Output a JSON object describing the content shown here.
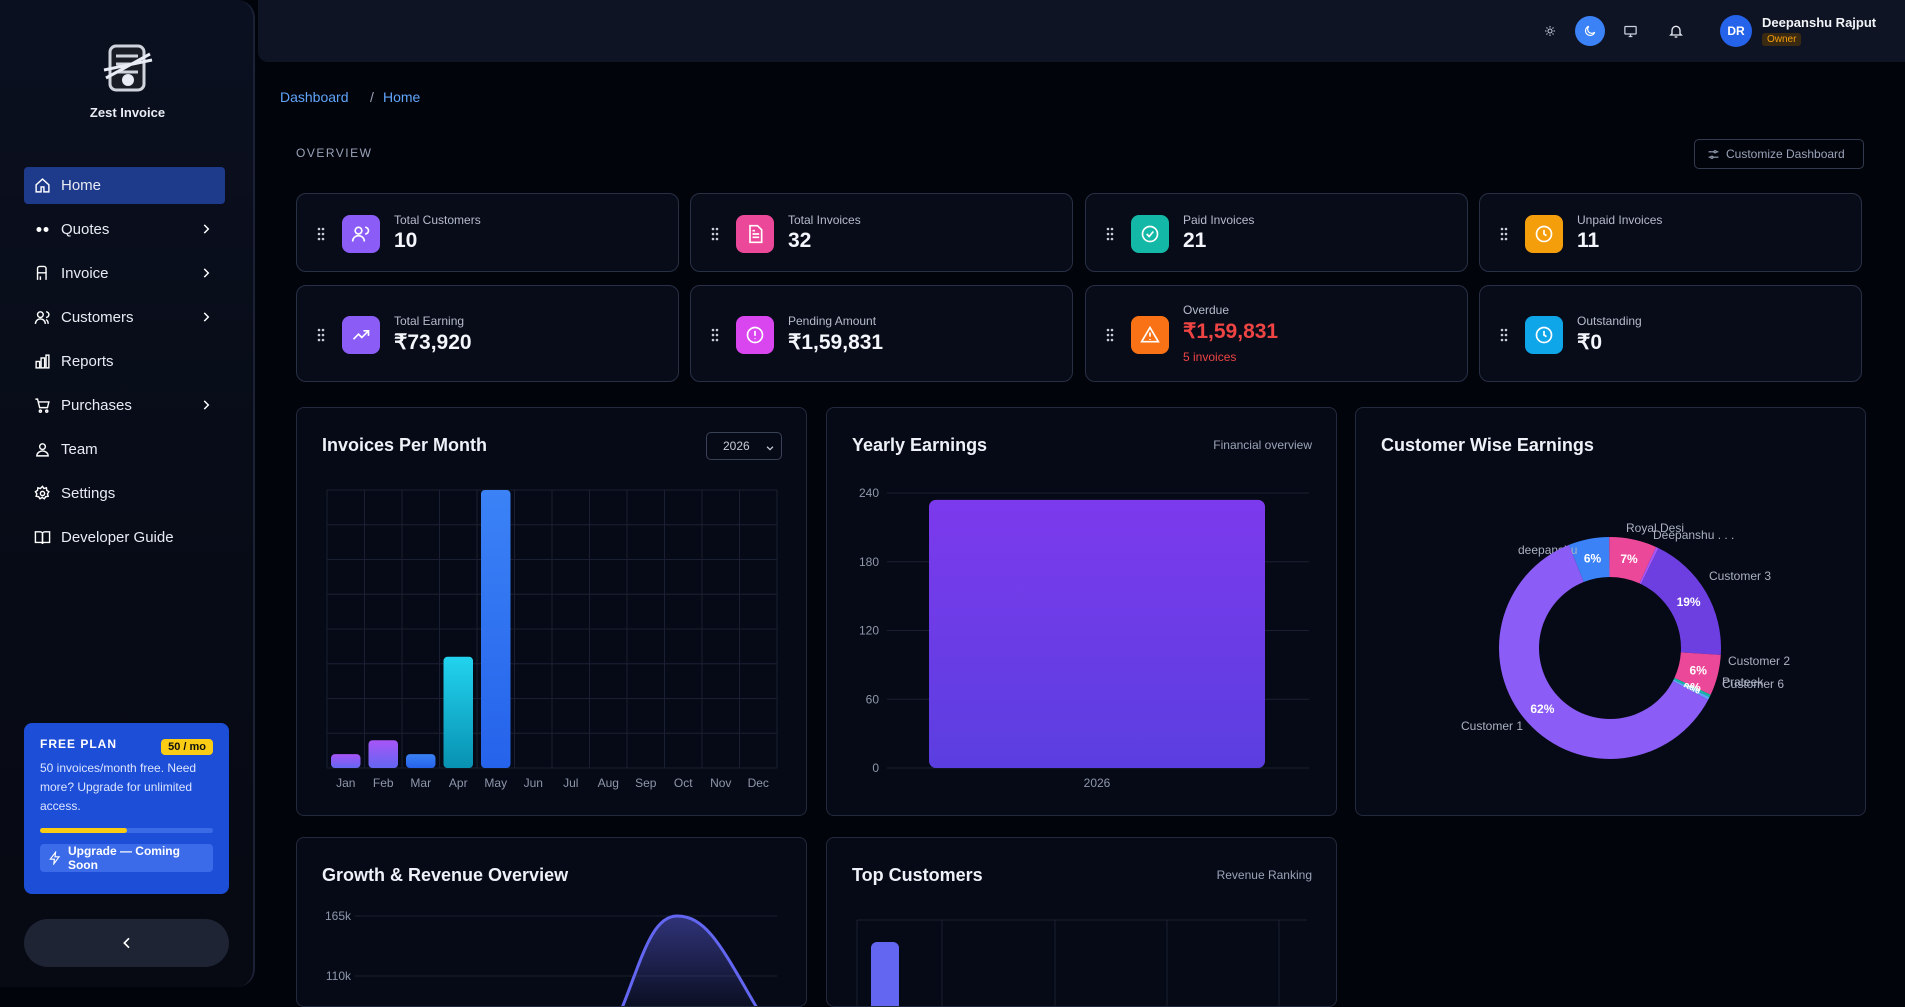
{
  "app": {
    "name": "Zest Invoice"
  },
  "sidebar": {
    "items": [
      {
        "label": "Home",
        "icon": "home-icon",
        "active": true,
        "has_children": false
      },
      {
        "label": "Quotes",
        "icon": "quotes-icon",
        "active": false,
        "has_children": true
      },
      {
        "label": "Invoice",
        "icon": "invoice-icon",
        "active": false,
        "has_children": true
      },
      {
        "label": "Customers",
        "icon": "users-icon",
        "active": false,
        "has_children": true
      },
      {
        "label": "Reports",
        "icon": "bar-chart-icon",
        "active": false,
        "has_children": false
      },
      {
        "label": "Purchases",
        "icon": "cart-icon",
        "active": false,
        "has_children": true
      },
      {
        "label": "Team",
        "icon": "team-icon",
        "active": false,
        "has_children": false
      },
      {
        "label": "Settings",
        "icon": "gear-icon",
        "active": false,
        "has_children": false
      },
      {
        "label": "Developer Guide",
        "icon": "book-icon",
        "active": false,
        "has_children": false
      }
    ]
  },
  "plan": {
    "title": "FREE PLAN",
    "badge": "50 / mo",
    "description": "50 invoices/month free. Need more? Upgrade for unlimited access.",
    "usage_fraction": 0.5,
    "upgrade_label": "Upgrade — Coming Soon"
  },
  "header": {
    "user_initials": "DR",
    "user_name": "Deepanshu Rajput",
    "user_role": "Owner",
    "theme_active": "dark"
  },
  "breadcrumb": {
    "root": "Dashboard",
    "separator": "/",
    "current": "Home"
  },
  "overview": {
    "heading": "OVERVIEW",
    "customize_label": "Customize Dashboard"
  },
  "stats": [
    {
      "label": "Total Customers",
      "value": "10",
      "icon": "users-icon",
      "color": "#8b5cf6"
    },
    {
      "label": "Total Invoices",
      "value": "32",
      "icon": "document-icon",
      "color": "#ec4899"
    },
    {
      "label": "Paid Invoices",
      "value": "21",
      "icon": "check-circle-icon",
      "color": "#14b8a6"
    },
    {
      "label": "Unpaid Invoices",
      "value": "11",
      "icon": "clock-icon",
      "color": "#f59e0b"
    },
    {
      "label": "Total Earning",
      "value": "₹73,920",
      "icon": "trending-up-icon",
      "color": "#8b5cf6"
    },
    {
      "label": "Pending Amount",
      "value": "₹1,59,831",
      "icon": "alert-circle-icon",
      "color": "#d946ef"
    },
    {
      "label": "Overdue",
      "value": "₹1,59,831",
      "sub": "5 invoices",
      "icon": "warning-icon",
      "color": "#f97316",
      "value_color": "#ef4444"
    },
    {
      "label": "Outstanding",
      "value": "₹0",
      "icon": "clock-icon",
      "color": "#0ea5e9"
    }
  ],
  "invoices_per_month": {
    "title": "Invoices Per Month",
    "year": "2026",
    "chart_data": {
      "type": "bar",
      "categories": [
        "Jan",
        "Feb",
        "Mar",
        "Apr",
        "May",
        "Jun",
        "Jul",
        "Aug",
        "Sep",
        "Oct",
        "Nov",
        "Dec"
      ],
      "values": [
        1,
        2,
        1,
        8,
        20,
        0,
        0,
        0,
        0,
        0,
        0,
        0
      ],
      "ylim": [
        0,
        20
      ],
      "grid": true
    }
  },
  "yearly_earnings": {
    "title": "Yearly Earnings",
    "subtitle": "Financial overview",
    "chart_data": {
      "type": "bar",
      "categories": [
        "2026"
      ],
      "values": [
        234
      ],
      "yticks": [
        "0",
        "60",
        "120",
        "180",
        "240"
      ],
      "ylim": [
        0,
        240
      ],
      "grid": true
    }
  },
  "customer_wise": {
    "title": "Customer Wise Earnings",
    "chart_data": {
      "type": "pie",
      "donut": true,
      "slices": [
        {
          "name": "Customer 1",
          "value": 62,
          "label": "62%",
          "color": "#8b5cf6"
        },
        {
          "name": "deepanshu",
          "value": 6,
          "label": "6%",
          "color": "#3b82f6"
        },
        {
          "name": "Royal Desi",
          "value": 7,
          "label": "7%",
          "color": "#ec4899"
        },
        {
          "name": "Deepanshu . . .",
          "value": 0.4,
          "label": "",
          "color": "#a855f7"
        },
        {
          "name": "Customer 3",
          "value": 19,
          "label": "19%",
          "color": "#6d3fe0"
        },
        {
          "name": "Customer 2",
          "value": 6,
          "label": "6%",
          "color": "#ec4899"
        },
        {
          "name": "Customer 6",
          "value": 0.4,
          "label": "0%",
          "color": "#14b8a6"
        },
        {
          "name": "Prateek",
          "value": 0.4,
          "label": "0%",
          "color": "#60a5fa"
        }
      ]
    }
  },
  "growth": {
    "title": "Growth & Revenue Overview",
    "chart_data": {
      "type": "area",
      "yticks": [
        "165k",
        "110k"
      ]
    }
  },
  "top_customers": {
    "title": "Top Customers",
    "subtitle": "Revenue Ranking"
  }
}
